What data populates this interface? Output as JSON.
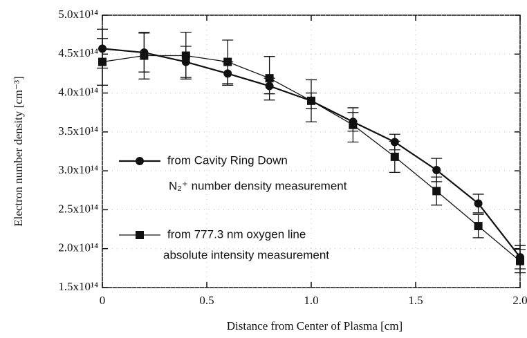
{
  "chart_data": {
    "type": "line",
    "x_label": "Distance from Center of Plasma [cm]",
    "y_label": "Electron number density [cm⁻³]",
    "x": [
      0,
      0.2,
      0.4,
      0.6,
      0.8,
      1.0,
      1.2,
      1.4,
      1.6,
      1.8,
      2.0
    ],
    "series": [
      {
        "name": "from Cavity Ring Down",
        "detail": "N₂⁺ number density measurement",
        "marker": "circle",
        "color": "#111111",
        "values": [
          457000000000000.0,
          452000000000000.0,
          440000000000000.0,
          425000000000000.0,
          409000000000000.0,
          390000000000000.0,
          363000000000000.0,
          337000000000000.0,
          301000000000000.0,
          258000000000000.0,
          189000000000000.0
        ],
        "errors": [
          25000000000000.0,
          25000000000000.0,
          20000000000000.0,
          15000000000000.0,
          10000000000000.0,
          10000000000000.0,
          12000000000000.0,
          10000000000000.0,
          15000000000000.0,
          12000000000000.0,
          15000000000000.0
        ]
      },
      {
        "name": "from 777.3 nm oxygen line",
        "detail": "absolute intensity measurement",
        "marker": "square",
        "color": "#111111",
        "values": [
          440000000000000.0,
          448000000000000.0,
          448000000000000.0,
          440000000000000.0,
          419000000000000.0,
          390000000000000.0,
          359000000000000.0,
          318000000000000.0,
          274000000000000.0,
          229000000000000.0,
          184000000000000.0
        ],
        "errors": [
          30000000000000.0,
          30000000000000.0,
          30000000000000.0,
          28000000000000.0,
          28000000000000.0,
          27000000000000.0,
          22000000000000.0,
          20000000000000.0,
          18000000000000.0,
          15000000000000.0,
          15000000000000.0
        ]
      }
    ],
    "xlim": [
      0,
      2.0
    ],
    "xticks": [
      0,
      0.5,
      {
        "value": 1.0,
        "label": "1.0"
      },
      1.5,
      {
        "value": 2.0,
        "label": "2.0"
      }
    ],
    "ylim": [
      150000000000000.0,
      500000000000000.0
    ],
    "yticks": [
      {
        "value": 150000000000000.0,
        "label": "1.5x10¹⁴"
      },
      {
        "value": 200000000000000.0,
        "label": "2.0x10¹⁴"
      },
      {
        "value": 250000000000000.0,
        "label": "2.5x10¹⁴"
      },
      {
        "value": 300000000000000.0,
        "label": "3.0x10¹⁴"
      },
      {
        "value": 350000000000000.0,
        "label": "3.5x10¹⁴"
      },
      {
        "value": 400000000000000.0,
        "label": "4.0x10¹⁴"
      },
      {
        "value": 450000000000000.0,
        "label": "4.5x10¹⁴"
      },
      {
        "value": 500000000000000.0,
        "label": "5.0x10¹⁴"
      }
    ],
    "grid": true
  }
}
